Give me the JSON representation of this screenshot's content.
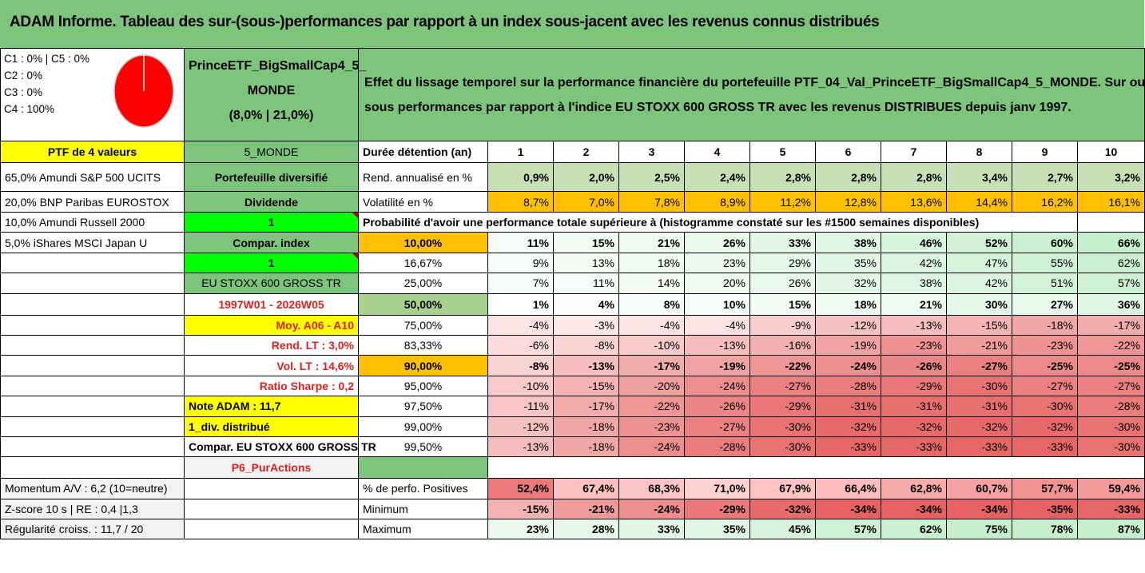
{
  "title": "ADAM Informe. Tableau des sur-(sous-)performances par rapport à un index sous-jacent avec les revenus connus distribués",
  "alloc": [
    "C1 : 0% | C5 : 0%",
    "C2 : 0%",
    "C3 : 0%",
    "C4 : 100%"
  ],
  "ptf_name": [
    "PrinceETF_BigSmallCap4_5_",
    "MONDE",
    "(8,0% | 21,0%)"
  ],
  "description": [
    "Effet du lissage temporel sur la performance financière du portefeuille PTF_04_Val_PrinceETF_BigSmallCap4_5_MONDE. Sur ou",
    "sous performances par rapport à l'indice EU STOXX 600 GROSS TR avec les revenus DISTRIBUES depuis janv 1997."
  ],
  "left_col": [
    "PTF de 4 valeurs",
    "65,0% Amundi S&P 500 UCITS",
    "20,0% BNP Paribas EUROSTOX",
    "10,0% Amundi Russell 2000",
    "5,0% iShares MSCI Japan U",
    "",
    "",
    "",
    "",
    "",
    "",
    "",
    "",
    "",
    "",
    "",
    "Momentum A/V : 6,2 (10=neutre)",
    "Z-score 10 s | RE : 0,4 |1,3",
    "Régularité croiss. : 11,7 / 20"
  ],
  "mid_col": [
    "5_MONDE",
    "Portefeuille diversifié",
    "Dividende",
    "1",
    "Compar. index",
    "1",
    "EU STOXX 600 GROSS TR",
    "1997W01 - 2026W05",
    "Moy. A06 - A10",
    "Rend. LT : 3,0%",
    "Vol. LT : 14,6%",
    "Ratio Sharpe : 0,2",
    "Note ADAM : 11,7",
    "1_div. distribué",
    "Compar. EU STOXX 600 GROSS TR",
    "P6_PurActions"
  ],
  "row_labels": {
    "duration": "Durée détention (an)",
    "rend": "Rend. annualisé en %",
    "vol": "Volatilité en %",
    "prob": "Probabilité d'avoir une performance totale supérieure à (histogramme constaté sur les #1500 semaines disponibles)",
    "pos": "% de perfo. Positives",
    "min": "Minimum",
    "max": "Maximum"
  },
  "years": [
    "1",
    "2",
    "3",
    "4",
    "5",
    "6",
    "7",
    "8",
    "9",
    "10"
  ],
  "rend": [
    "0,9%",
    "2,0%",
    "2,5%",
    "2,4%",
    "2,8%",
    "2,8%",
    "2,8%",
    "3,4%",
    "2,7%",
    "3,2%"
  ],
  "vol": [
    "8,7%",
    "7,0%",
    "7,8%",
    "8,9%",
    "11,2%",
    "12,8%",
    "13,6%",
    "14,4%",
    "16,2%",
    "16,1%"
  ],
  "thresholds": [
    "10,00%",
    "16,67%",
    "25,00%",
    "50,00%",
    "75,00%",
    "83,33%",
    "90,00%",
    "95,00%",
    "97,50%",
    "99,00%",
    "99,50%"
  ],
  "prob_rows": [
    [
      "11%",
      "15%",
      "21%",
      "26%",
      "33%",
      "38%",
      "46%",
      "52%",
      "60%",
      "66%"
    ],
    [
      "9%",
      "13%",
      "18%",
      "23%",
      "29%",
      "35%",
      "42%",
      "47%",
      "55%",
      "62%"
    ],
    [
      "7%",
      "11%",
      "14%",
      "20%",
      "26%",
      "32%",
      "38%",
      "42%",
      "51%",
      "57%"
    ],
    [
      "1%",
      "4%",
      "8%",
      "10%",
      "15%",
      "18%",
      "21%",
      "30%",
      "27%",
      "36%"
    ],
    [
      "-4%",
      "-3%",
      "-4%",
      "-4%",
      "-9%",
      "-12%",
      "-13%",
      "-15%",
      "-18%",
      "-17%"
    ],
    [
      "-6%",
      "-8%",
      "-10%",
      "-13%",
      "-16%",
      "-19%",
      "-23%",
      "-21%",
      "-23%",
      "-22%"
    ],
    [
      "-8%",
      "-13%",
      "-17%",
      "-19%",
      "-22%",
      "-24%",
      "-26%",
      "-27%",
      "-25%",
      "-25%"
    ],
    [
      "-10%",
      "-15%",
      "-20%",
      "-24%",
      "-27%",
      "-28%",
      "-29%",
      "-30%",
      "-27%",
      "-27%"
    ],
    [
      "-11%",
      "-17%",
      "-22%",
      "-26%",
      "-29%",
      "-31%",
      "-31%",
      "-31%",
      "-30%",
      "-28%"
    ],
    [
      "-12%",
      "-18%",
      "-23%",
      "-27%",
      "-30%",
      "-32%",
      "-32%",
      "-32%",
      "-32%",
      "-30%"
    ],
    [
      "-13%",
      "-18%",
      "-24%",
      "-28%",
      "-30%",
      "-33%",
      "-33%",
      "-33%",
      "-33%",
      "-30%"
    ]
  ],
  "pos": [
    "52,4%",
    "67,4%",
    "68,3%",
    "71,0%",
    "67,9%",
    "66,4%",
    "62,8%",
    "60,7%",
    "57,7%",
    "59,4%"
  ],
  "min": [
    "-15%",
    "-21%",
    "-24%",
    "-29%",
    "-32%",
    "-34%",
    "-34%",
    "-34%",
    "-35%",
    "-33%"
  ],
  "max": [
    "23%",
    "28%",
    "33%",
    "35%",
    "45%",
    "57%",
    "62%",
    "75%",
    "78%",
    "87%"
  ],
  "colors": {
    "header_green": "#7dc57d",
    "yellow": "#ffff00",
    "orange": "#ffc000",
    "bright_green": "#00ff00",
    "pie_red": "#ff0000"
  }
}
